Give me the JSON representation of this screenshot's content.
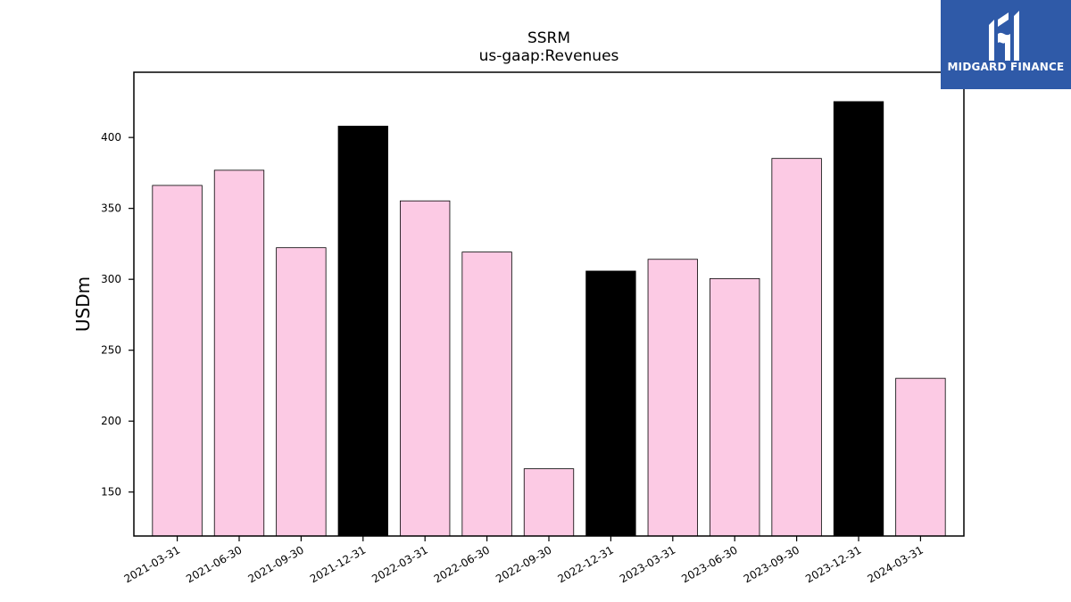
{
  "chart_data": {
    "type": "bar",
    "title": "SSRM",
    "subtitle": "us-gaap:Revenues",
    "xlabel": "",
    "ylabel": "USDm",
    "categories": [
      "2021-03-31",
      "2021-06-30",
      "2021-09-30",
      "2021-12-31",
      "2022-03-31",
      "2022-06-30",
      "2022-09-30",
      "2022-12-31",
      "2023-03-31",
      "2023-06-30",
      "2023-09-30",
      "2023-12-31",
      "2024-03-31"
    ],
    "values": [
      366.2,
      376.9,
      322.3,
      408.0,
      355.3,
      319.2,
      166.4,
      305.8,
      314.1,
      300.5,
      385.2,
      425.3,
      230.2
    ],
    "bar_colors": [
      "#fccae4",
      "#fccae4",
      "#fccae4",
      "#000000",
      "#fccae4",
      "#fccae4",
      "#fccae4",
      "#000000",
      "#fccae4",
      "#fccae4",
      "#fccae4",
      "#000000",
      "#fccae4"
    ],
    "ylim": [
      119,
      446
    ],
    "yticks": [
      150,
      200,
      250,
      300,
      350,
      400
    ],
    "grid": false,
    "legend": "none"
  },
  "logo": {
    "text": "MIDGARD FINANCE",
    "background": "#2f5aa8"
  }
}
